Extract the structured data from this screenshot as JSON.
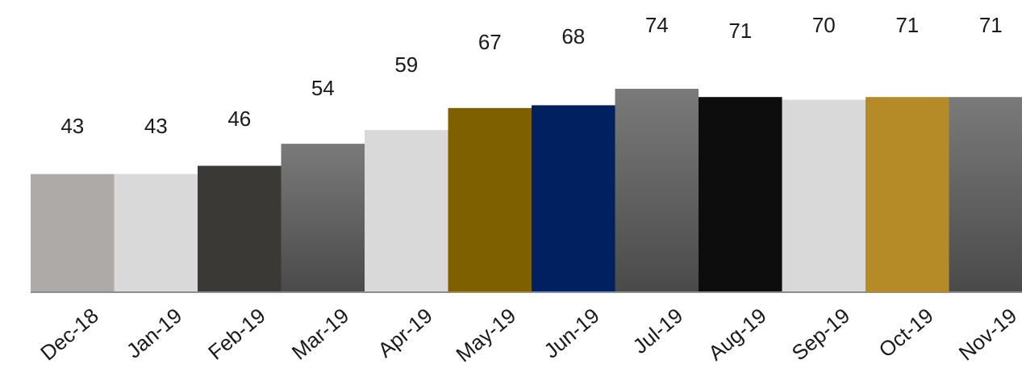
{
  "chart_data": {
    "type": "bar",
    "categories": [
      "Dec-18",
      "Jan-19",
      "Feb-19",
      "Mar-19",
      "Apr-19",
      "May-19",
      "Jun-19",
      "Jul-19",
      "Aug-19",
      "Sep-19",
      "Oct-19",
      "Nov-19"
    ],
    "series": [
      {
        "values": [
          43,
          43,
          46,
          54,
          59,
          67,
          68,
          74,
          71,
          70,
          71,
          71
        ]
      }
    ],
    "bar_colors": [
      "#aeaaa8",
      "#d9d9d9",
      "#3b3936",
      "gradient-gray",
      "#d9d9d9",
      "#7f6000",
      "#002060",
      "gradient-gray",
      "#0d0d0d",
      "#d9d9d9",
      "#b58b27",
      "gradient-gray"
    ],
    "data_labels": [
      "43",
      "43",
      "46",
      "54",
      "59",
      "67",
      "68",
      "74",
      "71",
      "70",
      "71",
      "71"
    ],
    "ylim": [
      0,
      74
    ],
    "grid": false,
    "legend": "none"
  }
}
